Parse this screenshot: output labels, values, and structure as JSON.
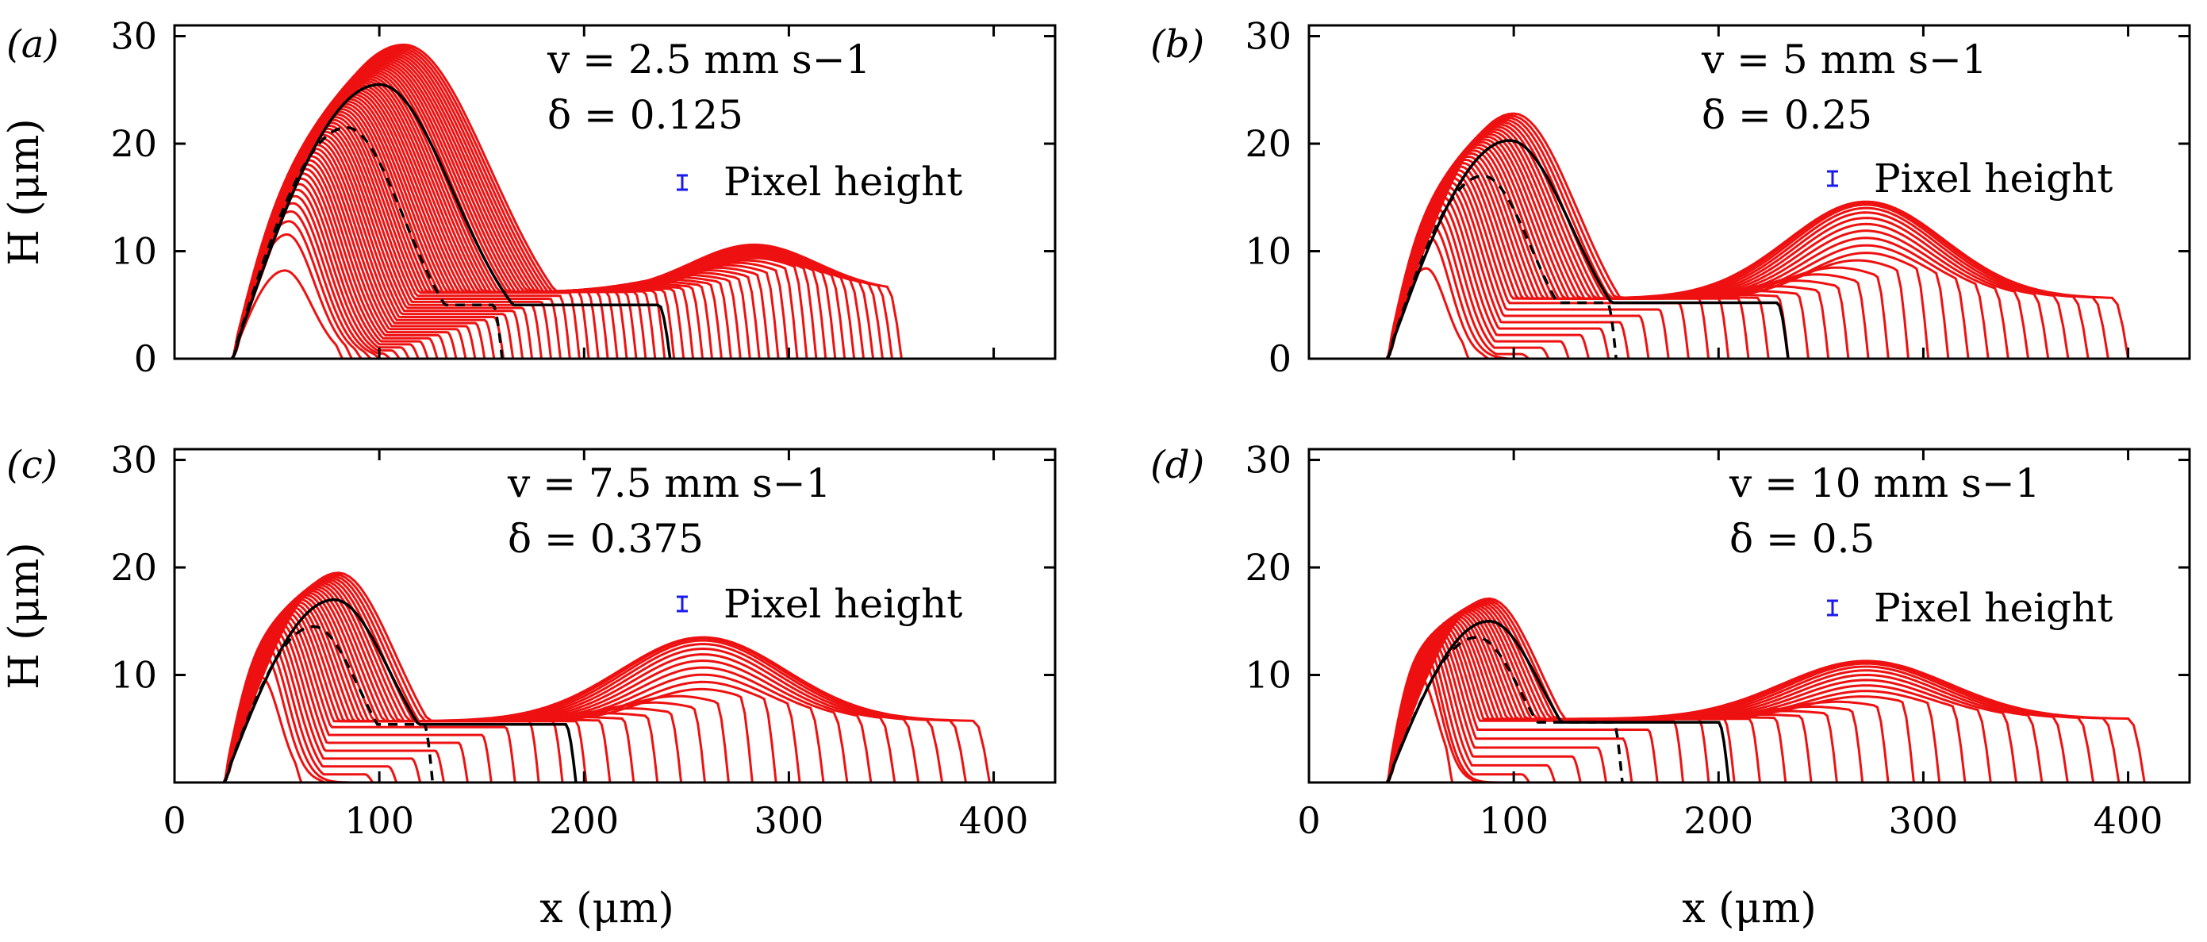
{
  "figure": {
    "x_axis_label": "x (μm)",
    "y_axis_label": "H (μm)",
    "legend_label": "Pixel height",
    "colors": {
      "profiles": "#ee1111",
      "reference": "#000000",
      "pixel_marker": "#1a1aee",
      "axes": "#000000"
    }
  },
  "chart_data": [
    {
      "type": "line",
      "panel_label": "(a)",
      "velocity_label": "v = 2.5 mm s−1",
      "delta_label": "δ = 0.125",
      "xlim": [
        0,
        430
      ],
      "ylim": [
        0,
        31
      ],
      "xticks": [
        0,
        100,
        200,
        300,
        400
      ],
      "yticks": [
        0,
        10,
        20,
        30
      ],
      "start_x": 28,
      "profile_count": 60,
      "first_profile": {
        "x_end": 82,
        "peak": 8.2
      },
      "front": {
        "peak_x": 112,
        "peak_h": 29.2,
        "plateau_h": 6.2,
        "ridge_x": 283,
        "ridge_h": 10.6,
        "x_end": 355
      },
      "solid_profile": {
        "x_end": 242,
        "peak_x": 100,
        "peak_h": 25.5,
        "plateau_h": 5.0
      },
      "dashed_profile": {
        "x_end": 160,
        "peak_x": 84,
        "peak_h": 21.5,
        "plateau_h": 5.0
      }
    },
    {
      "type": "line",
      "panel_label": "(b)",
      "velocity_label": "v = 5 mm s−1",
      "delta_label": "δ = 0.25",
      "xlim": [
        0,
        430
      ],
      "ylim": [
        0,
        31
      ],
      "xticks": [
        0,
        100,
        200,
        300,
        400
      ],
      "yticks": [
        0,
        10,
        20,
        30
      ],
      "start_x": 38,
      "profile_count": 34,
      "first_profile": {
        "x_end": 78,
        "peak": 8.4
      },
      "front": {
        "peak_x": 100,
        "peak_h": 22.8,
        "plateau_h": 5.6,
        "ridge_x": 272,
        "ridge_h": 14.6,
        "x_end": 400
      },
      "solid_profile": {
        "x_end": 234,
        "peak_x": 98,
        "peak_h": 20.3,
        "plateau_h": 5.2
      },
      "dashed_profile": {
        "x_end": 150,
        "peak_x": 85,
        "peak_h": 17.0,
        "plateau_h": 5.2
      }
    },
    {
      "type": "line",
      "panel_label": "(c)",
      "velocity_label": "v = 7.5 mm s−1",
      "delta_label": "δ = 0.375",
      "xlim": [
        0,
        430
      ],
      "ylim": [
        0,
        31
      ],
      "xticks": [
        0,
        100,
        200,
        300,
        400
      ],
      "yticks": [
        10,
        20,
        30
      ],
      "start_x": 24,
      "profile_count": 30,
      "first_profile": {
        "x_end": 62,
        "peak": 9.8
      },
      "front": {
        "peak_x": 80,
        "peak_h": 19.5,
        "plateau_h": 5.7,
        "ridge_x": 258,
        "ridge_h": 13.5,
        "x_end": 398
      },
      "solid_profile": {
        "x_end": 196,
        "peak_x": 78,
        "peak_h": 17.0,
        "plateau_h": 5.4
      },
      "dashed_profile": {
        "x_end": 126,
        "peak_x": 68,
        "peak_h": 14.5,
        "plateau_h": 5.4
      }
    },
    {
      "type": "line",
      "panel_label": "(d)",
      "velocity_label": "v = 10 mm s−1",
      "delta_label": "δ = 0.5",
      "xlim": [
        0,
        430
      ],
      "ylim": [
        0,
        31
      ],
      "xticks": [
        0,
        100,
        200,
        300,
        400
      ],
      "yticks": [
        10,
        20,
        30
      ],
      "start_x": 38,
      "profile_count": 28,
      "first_profile": {
        "x_end": 70,
        "peak": 10.0
      },
      "front": {
        "peak_x": 88,
        "peak_h": 17.1,
        "plateau_h": 5.9,
        "ridge_x": 272,
        "ridge_h": 11.3,
        "x_end": 408
      },
      "solid_profile": {
        "x_end": 205,
        "peak_x": 88,
        "peak_h": 15.0,
        "plateau_h": 5.6
      },
      "dashed_profile": {
        "x_end": 153,
        "peak_x": 82,
        "peak_h": 13.5,
        "plateau_h": 5.6
      }
    }
  ]
}
